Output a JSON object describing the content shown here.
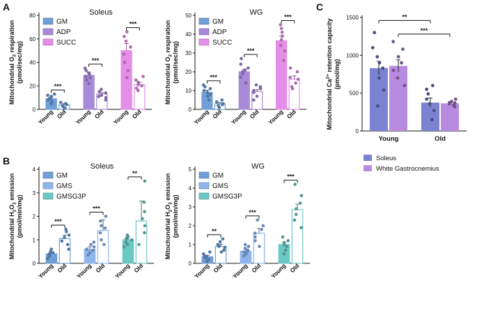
{
  "colors": {
    "GM": "#6f9fd6",
    "ADP": "#a98ad9",
    "SUCC": "#e58ee8",
    "GMS": "#8fb5ef",
    "GMSG3P": "#6cc8c4",
    "soleus": "#7b82d1",
    "wg": "#b98be0",
    "young_dot_gm": "#4f82c3",
    "old_dot_gm": "#4f82c3"
  },
  "chart_data": [
    {
      "panel": "A",
      "type": "bar",
      "title": "Soleus",
      "ylabel_lines": [
        "Mitochondrial O2 respiration",
        "(pmol/sec/mg)"
      ],
      "ylim": [
        0,
        80
      ],
      "yticks": [
        0,
        20,
        40,
        60,
        80
      ],
      "groups": [
        "GM",
        "ADP",
        "SUCC"
      ],
      "xlabels": [
        "Young",
        "Old"
      ],
      "legend": [
        "GM",
        "ADP",
        "SUCC"
      ],
      "values": {
        "GM": [
          9,
          4
        ],
        "ADP": [
          29,
          13
        ],
        "SUCC": [
          50,
          21
        ]
      },
      "errors": {
        "GM": [
          1.5,
          0.8
        ],
        "ADP": [
          2.5,
          1.2
        ],
        "SUCC": [
          6,
          2
        ]
      },
      "points": {
        "GM": [
          [
            5,
            7,
            8,
            9,
            10,
            11,
            12,
            13
          ],
          [
            1,
            2,
            3,
            4,
            5,
            6
          ]
        ],
        "ADP": [
          [
            22,
            25,
            27,
            28,
            30,
            31,
            33,
            35
          ],
          [
            8,
            10,
            11,
            12,
            14,
            15,
            17
          ]
        ],
        "SUCC": [
          [
            27,
            33,
            40,
            47,
            53,
            58,
            62,
            66
          ],
          [
            16,
            18,
            20,
            21,
            23,
            25,
            28
          ]
        ]
      },
      "significance": [
        "***",
        "***",
        "***"
      ]
    },
    {
      "panel": "",
      "type": "bar",
      "title": "WG",
      "ylabel_lines": [
        "Mitochondrial O2 respiration",
        "(pmol/sec/mg)"
      ],
      "ylim": [
        0,
        50
      ],
      "yticks": [
        0,
        10,
        20,
        30,
        40,
        50
      ],
      "groups": [
        "GM",
        "ADP",
        "SUCC"
      ],
      "xlabels": [
        "Young",
        "Old"
      ],
      "legend": [
        "GM",
        "ADP",
        "SUCC"
      ],
      "values": {
        "GM": [
          9,
          3
        ],
        "ADP": [
          20,
          9.5
        ],
        "SUCC": [
          36.5,
          16
        ]
      },
      "errors": {
        "GM": [
          1.2,
          0.6
        ],
        "ADP": [
          1.3,
          1.0
        ],
        "SUCC": [
          2.5,
          1.8
        ]
      },
      "points": {
        "GM": [
          [
            5,
            7,
            8,
            9,
            10,
            11,
            12,
            13
          ],
          [
            1,
            2,
            2.5,
            3,
            4,
            5
          ]
        ],
        "ADP": [
          [
            14,
            17,
            19,
            20,
            21,
            22,
            24,
            27
          ],
          [
            5,
            7,
            9,
            10,
            11,
            12,
            13
          ]
        ],
        "SUCC": [
          [
            26,
            31,
            34,
            37,
            39,
            41,
            43,
            45
          ],
          [
            11,
            12,
            14,
            16,
            17,
            20,
            22
          ]
        ]
      },
      "significance": [
        "***",
        "***",
        "***"
      ]
    },
    {
      "panel": "C",
      "type": "bar",
      "title": "",
      "ylabel_lines": [
        "Mitochondrial Ca2+ retention capacity",
        "(pmol/mg)"
      ],
      "ylim": [
        0,
        1500
      ],
      "yticks": [
        0,
        500,
        1000,
        1500
      ],
      "categories": [
        "Young",
        "Old"
      ],
      "series": [
        {
          "name": "Soleus",
          "values": [
            830,
            375
          ],
          "errors": [
            90,
            60
          ],
          "points": [
            [
              330,
              540,
              700,
              830,
              900,
              980,
              1100,
              1300
            ],
            [
              150,
              270,
              360,
              420,
              490,
              550,
              600
            ]
          ]
        },
        {
          "name": "White Gastrocnemius",
          "values": [
            860,
            365
          ],
          "errors": [
            80,
            20
          ],
          "points": [
            [
              600,
              700,
              800,
              900,
              980,
              1080,
              1180
            ],
            [
              320,
              340,
              360,
              370,
              390,
              420
            ]
          ]
        }
      ],
      "legend": [
        "Soleus",
        "White Gastrocnemius"
      ],
      "significance": [
        "**",
        "***"
      ]
    },
    {
      "panel": "B",
      "type": "bar",
      "title": "Soleus",
      "ylabel_lines": [
        "Mitochondrial H2O2 emission",
        "(pmol/min/mg)"
      ],
      "ylim": [
        0,
        4
      ],
      "yticks": [
        0,
        1,
        2,
        3,
        4
      ],
      "groups": [
        "GM",
        "GMS",
        "GMSG3P"
      ],
      "xlabels": [
        "Young",
        "Old"
      ],
      "legend": [
        "GM",
        "GMS",
        "GMSG3P"
      ],
      "values": {
        "GM": [
          0.4,
          1.05
        ],
        "GMS": [
          0.6,
          1.4
        ],
        "GMSG3P": [
          1.0,
          1.8
        ]
      },
      "errors": {
        "GM": [
          0.08,
          0.15
        ],
        "GMS": [
          0.1,
          0.45
        ],
        "GMSG3P": [
          0.15,
          0.85
        ]
      },
      "points": {
        "GM": [
          [
            0.2,
            0.3,
            0.35,
            0.4,
            0.45,
            0.5,
            0.6
          ],
          [
            0.6,
            0.8,
            0.95,
            1.1,
            1.2,
            1.35,
            1.45
          ]
        ],
        "GMS": [
          [
            0.35,
            0.45,
            0.55,
            0.6,
            0.7,
            0.8,
            0.9
          ],
          [
            0.8,
            1.0,
            1.3,
            1.5,
            1.6,
            1.8,
            2.0
          ]
        ],
        "GMSG3P": [
          [
            0.7,
            0.8,
            0.9,
            1.0,
            1.05,
            1.1,
            1.2
          ],
          [
            0.8,
            1.3,
            1.6,
            1.9,
            2.2,
            2.6,
            3.5
          ]
        ]
      },
      "significance": [
        "***",
        "***",
        "**"
      ]
    },
    {
      "panel": "",
      "type": "bar",
      "title": "WG",
      "ylabel_lines": [
        "Mitochondrial H2O2 emission",
        "(pmol/min/mg)"
      ],
      "ylim": [
        0,
        5
      ],
      "yticks": [
        0,
        1,
        2,
        3,
        4,
        5
      ],
      "groups": [
        "GM",
        "GMS",
        "GMSG3P"
      ],
      "xlabels": [
        "Young",
        "Old"
      ],
      "legend": [
        "GM",
        "GMS",
        "GMSG3P"
      ],
      "values": {
        "GM": [
          0.35,
          0.9
        ],
        "GMS": [
          0.65,
          1.6
        ],
        "GMSG3P": [
          1.0,
          2.85
        ]
      },
      "errors": {
        "GM": [
          0.08,
          0.12
        ],
        "GMS": [
          0.1,
          0.25
        ],
        "GMSG3P": [
          0.12,
          0.3
        ]
      },
      "points": {
        "GM": [
          [
            0.1,
            0.2,
            0.3,
            0.35,
            0.4,
            0.5,
            0.6
          ],
          [
            0.6,
            0.7,
            0.85,
            0.9,
            1.0,
            1.15,
            1.3
          ]
        ],
        "GMS": [
          [
            0.4,
            0.5,
            0.6,
            0.65,
            0.7,
            0.8,
            0.9,
            1.0
          ],
          [
            0.9,
            1.2,
            1.4,
            1.6,
            1.8,
            2.0,
            2.3
          ]
        ],
        "GMSG3P": [
          [
            0.5,
            0.7,
            0.9,
            1.0,
            1.1,
            1.2,
            1.4
          ],
          [
            1.9,
            2.3,
            2.6,
            2.9,
            3.2,
            3.6,
            4.2
          ]
        ]
      },
      "significance": [
        "**",
        "***",
        "***"
      ]
    }
  ]
}
